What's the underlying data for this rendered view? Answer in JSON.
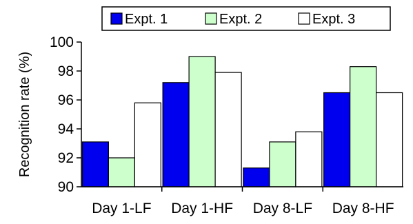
{
  "chart_data": {
    "type": "bar",
    "categories": [
      "Day 1-LF",
      "Day 1-HF",
      "Day 8-LF",
      "Day 8-HF"
    ],
    "series": [
      {
        "name": "Expt. 1",
        "values": [
          93.1,
          97.2,
          91.3,
          96.5
        ],
        "color": "#0000ee"
      },
      {
        "name": "Expt. 2",
        "values": [
          92.0,
          99.0,
          93.1,
          98.3
        ],
        "color": "#ccffcc"
      },
      {
        "name": "Expt. 3",
        "values": [
          95.8,
          97.9,
          93.8,
          96.5
        ],
        "color": "#ffffff"
      }
    ],
    "ylabel": "Recognition rate (%)",
    "ylim": [
      90,
      100
    ],
    "yticks": [
      "90",
      "92",
      "94",
      "96",
      "98",
      "100"
    ],
    "grid": false,
    "legend_position": "top"
  }
}
